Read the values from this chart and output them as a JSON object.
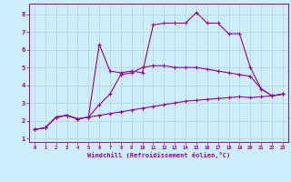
{
  "xlabel": "Windchill (Refroidissement éolien,°C)",
  "bg_color": "#cceeff",
  "grid_color": "#aacccc",
  "line_color": "#990099",
  "xlim": [
    -0.5,
    23.5
  ],
  "ylim": [
    0.8,
    8.6
  ],
  "xticks": [
    0,
    1,
    2,
    3,
    4,
    5,
    6,
    7,
    8,
    9,
    10,
    11,
    12,
    13,
    14,
    15,
    16,
    17,
    18,
    19,
    20,
    21,
    22,
    23
  ],
  "yticks": [
    1,
    2,
    3,
    4,
    5,
    6,
    7,
    8
  ],
  "series1_x": [
    0,
    1,
    2,
    3,
    4,
    5,
    6,
    7,
    8,
    9,
    10,
    11,
    12,
    13,
    14,
    15,
    16,
    17,
    18,
    19,
    20,
    21,
    22,
    23
  ],
  "series1_y": [
    1.5,
    1.6,
    2.2,
    2.3,
    2.1,
    2.2,
    6.3,
    4.8,
    4.7,
    4.8,
    4.7,
    7.4,
    7.5,
    7.5,
    7.5,
    8.1,
    7.5,
    7.5,
    6.9,
    6.9,
    5.0,
    3.8,
    3.4,
    3.5
  ],
  "series2_x": [
    0,
    1,
    2,
    3,
    4,
    5,
    6,
    7,
    8,
    9,
    10,
    11,
    12,
    13,
    14,
    15,
    16,
    17,
    18,
    19,
    20,
    21,
    22,
    23
  ],
  "series2_y": [
    1.5,
    1.6,
    2.2,
    2.3,
    2.1,
    2.2,
    2.9,
    3.5,
    4.6,
    4.7,
    5.0,
    5.1,
    5.1,
    5.0,
    5.0,
    5.0,
    4.9,
    4.8,
    4.7,
    4.6,
    4.5,
    3.8,
    3.4,
    3.5
  ],
  "series3_x": [
    0,
    1,
    2,
    3,
    4,
    5,
    6,
    7,
    8,
    9,
    10,
    11,
    12,
    13,
    14,
    15,
    16,
    17,
    18,
    19,
    20,
    21,
    22,
    23
  ],
  "series3_y": [
    1.5,
    1.6,
    2.2,
    2.3,
    2.1,
    2.2,
    2.3,
    2.4,
    2.5,
    2.6,
    2.7,
    2.8,
    2.9,
    3.0,
    3.1,
    3.15,
    3.2,
    3.25,
    3.3,
    3.35,
    3.3,
    3.35,
    3.4,
    3.5
  ],
  "marker_size": 3,
  "linewidth": 0.8
}
